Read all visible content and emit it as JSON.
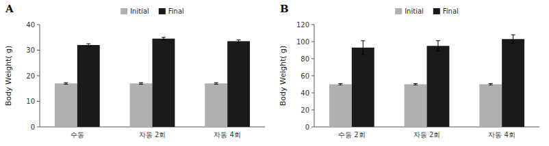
{
  "chart_data": [
    {
      "type": "bar",
      "title": "A",
      "categories": [
        "수동",
        "자동 2회",
        "자동 4회"
      ],
      "series": [
        {
          "name": "Initial",
          "color": "#b0b0b0",
          "values": [
            17.0,
            17.0,
            17.0
          ],
          "errors": [
            0.3,
            0.3,
            0.3
          ]
        },
        {
          "name": "Final",
          "color": "#1a1a1a",
          "values": [
            32.0,
            34.5,
            33.5
          ],
          "errors": [
            0.5,
            0.5,
            0.5
          ]
        }
      ],
      "ylabel": "Body Weight( g)",
      "ylim": [
        0,
        40
      ],
      "yticks": [
        0,
        10,
        20,
        30,
        40
      ],
      "grid": false,
      "legend": "top"
    },
    {
      "type": "bar",
      "title": "B",
      "categories": [
        "수동 2회",
        "자동 2회",
        "자동 4회"
      ],
      "series": [
        {
          "name": "Initial",
          "color": "#b0b0b0",
          "values": [
            50.0,
            50.0,
            50.0
          ],
          "errors": [
            0.8,
            0.8,
            0.8
          ]
        },
        {
          "name": "Final",
          "color": "#1a1a1a",
          "values": [
            93.0,
            95.0,
            103.0
          ],
          "errors": [
            8.0,
            6.0,
            5.0
          ]
        }
      ],
      "ylabel": "Body Weight( g)",
      "ylim": [
        0,
        120
      ],
      "yticks": [
        0,
        20,
        40,
        60,
        80,
        100,
        120
      ],
      "grid": false,
      "legend": "top"
    }
  ]
}
